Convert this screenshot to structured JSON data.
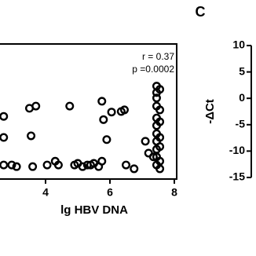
{
  "chart_data": [
    {
      "type": "scatter",
      "xlabel": "lg HBV DNA",
      "annotations": [
        "r = 0.37",
        "p =0.0002"
      ],
      "xlim": [
        2,
        8
      ],
      "xticks": [
        4,
        6,
        8
      ],
      "ylim": [
        -15,
        10
      ],
      "color": "#000000",
      "x": [
        2.7,
        2.7,
        2.7,
        2.95,
        3.1,
        3.55,
        3.6,
        3.5,
        3.7,
        4.05,
        4.3,
        4.4,
        4.75,
        4.9,
        5.0,
        5.15,
        5.3,
        5.4,
        5.5,
        5.65,
        5.75,
        5.9,
        5.8,
        5.75,
        6.05,
        6.35,
        6.45,
        6.5,
        6.75,
        7.1,
        7.2,
        7.35,
        7.45,
        7.45,
        7.45,
        7.45,
        7.45,
        7.45,
        7.45,
        7.45,
        7.45,
        7.45,
        7.45,
        7.55,
        7.55,
        7.55,
        7.55,
        7.55,
        7.55,
        7.55
      ],
      "values": [
        -3.4,
        -7.3,
        -12.4,
        -12.4,
        -12.7,
        -7.0,
        -12.7,
        -1.9,
        -1.5,
        -12.4,
        -11.7,
        -12.4,
        -1.5,
        -12.4,
        -12.1,
        -12.7,
        -12.4,
        -12.4,
        -12.1,
        -12.7,
        -11.7,
        -7.7,
        -4.0,
        -0.6,
        -2.6,
        -2.5,
        -2.2,
        -12.4,
        -13.1,
        -8.0,
        -10.2,
        -10.9,
        2.2,
        1.0,
        0.0,
        -1.5,
        -3.7,
        -5.1,
        -6.6,
        -8.0,
        -9.5,
        -10.9,
        -12.4,
        1.6,
        -2.2,
        -4.4,
        -7.3,
        -9.0,
        -11.7,
        -13.1
      ]
    },
    {
      "type": "axis",
      "panel": "C",
      "ylabel": "-ΔCt",
      "ylim": [
        -15,
        10
      ],
      "yticks": [
        10,
        5,
        0,
        -5,
        -10,
        -15
      ]
    }
  ]
}
